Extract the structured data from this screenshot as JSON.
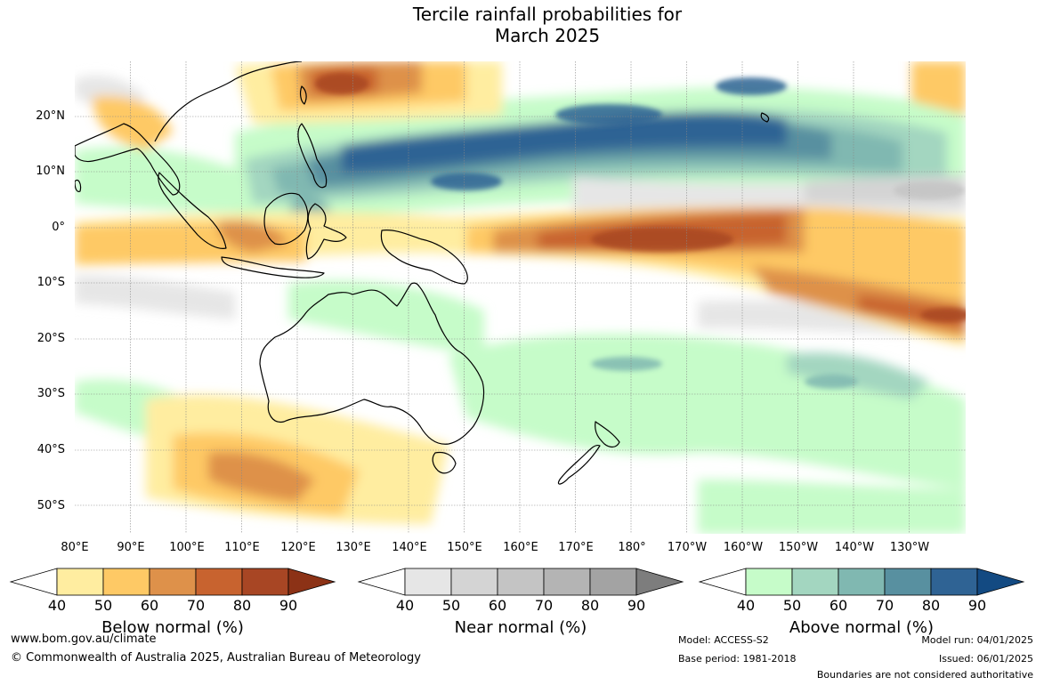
{
  "title": {
    "line1": "Tercile rainfall probabilities for",
    "line2": "March 2025"
  },
  "map": {
    "latitude_labels": [
      "20°N",
      "10°N",
      "0°",
      "10°S",
      "20°S",
      "30°S",
      "40°S",
      "50°S"
    ],
    "longitude_labels": [
      "80°E",
      "90°E",
      "100°E",
      "110°E",
      "120°E",
      "130°E",
      "140°E",
      "150°E",
      "160°E",
      "170°E",
      "180°",
      "170°W",
      "160°W",
      "150°W",
      "140°W",
      "130°W"
    ],
    "extent": {
      "lon_min_east": 80,
      "lon_max_east": 240,
      "lat_min": -55,
      "lat_max": 30
    }
  },
  "legends": [
    {
      "title": "Below normal (%)",
      "ticks": [
        "40",
        "50",
        "60",
        "70",
        "80",
        "90"
      ],
      "colors": [
        "#ffffff",
        "#ffeda0",
        "#fec965",
        "#de914a",
        "#c8632f",
        "#a84624",
        "#8c3216"
      ]
    },
    {
      "title": "Near normal (%)",
      "ticks": [
        "40",
        "50",
        "60",
        "70",
        "80",
        "90"
      ],
      "colors": [
        "#ffffff",
        "#e6e6e6",
        "#d4d4d4",
        "#c4c4c4",
        "#b4b4b4",
        "#a3a3a3",
        "#7d7d7d"
      ]
    },
    {
      "title": "Above normal (%)",
      "ticks": [
        "40",
        "50",
        "60",
        "70",
        "80",
        "90"
      ],
      "colors": [
        "#ffffff",
        "#c6fcc9",
        "#a3d6c0",
        "#80b8b1",
        "#5890a0",
        "#2f6394",
        "#134a82"
      ]
    }
  ],
  "footer": {
    "website": "www.bom.gov.au/climate",
    "copyright": "© Commonwealth of Australia 2025, Australian Bureau of Meteorology",
    "model": "Model: ACCESS-S2",
    "base_period": "Base period: 1981-2018",
    "model_run": "Model run: 04/01/2025",
    "issued": "Issued: 06/01/2025",
    "disclaimer": "Boundaries are not considered authoritative"
  },
  "colors": {
    "land_outline": "#000000",
    "gridline": "#888888"
  }
}
